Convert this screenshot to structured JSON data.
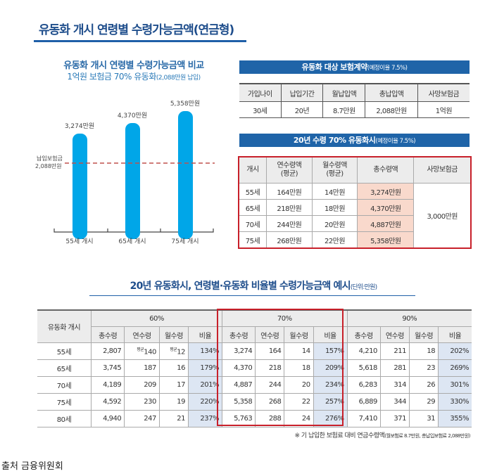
{
  "title": "유동화 개시 연령별 수령가능금액(연금형)",
  "chart": {
    "title": "유동화 개시 연령별 수령가능금액 비교",
    "subtitle_main": "1억원 보험금 70% 유동화",
    "subtitle_small": "(2,088만원 납입)",
    "ref_label_1": "납입보험금",
    "ref_label_2": "2,088만원",
    "bar_color": "#00a6e8",
    "ref_color": "#c0504d"
  },
  "chart_data": {
    "type": "bar",
    "categories": [
      "55세 개시",
      "65세 개시",
      "75세 개시"
    ],
    "values": [
      3274,
      4370,
      5358
    ],
    "data_labels": [
      "3,274만원",
      "4,370만원",
      "5,358만원"
    ],
    "reference_line": {
      "value": 2088,
      "label": "납입보험금 2,088만원"
    }
  },
  "table1": {
    "title": "유동화 대상 보험계약",
    "title_note": "(예정이율 7.5%)",
    "headers": [
      "가입나이",
      "납입기간",
      "월납입액",
      "총납입액",
      "사망보험금"
    ],
    "row": [
      "30세",
      "20년",
      "8.7만원",
      "2,088만원",
      "1억원"
    ]
  },
  "table2": {
    "title": "20년 수령 70% 유동화시",
    "title_note": "(예정이율 7.5%)",
    "headers": [
      "개시",
      "연수령액\n(평균)",
      "월수령액\n(평균)",
      "총수령액",
      "사망보험금"
    ],
    "rows": [
      [
        "55세",
        "164만원",
        "14만원",
        "3,274만원"
      ],
      [
        "65세",
        "218만원",
        "18만원",
        "4,370만원"
      ],
      [
        "70세",
        "244만원",
        "20만원",
        "4,887만원"
      ],
      [
        "75세",
        "268만원",
        "22만원",
        "5,358만원"
      ]
    ],
    "death_benefit": "3,000만원"
  },
  "table3": {
    "title": "20년 유동화시, 연령별·유동화 비율별 수령가능금액 예시",
    "title_note": "(단위:만원)",
    "row_header": "유동화 개시",
    "groups": [
      "60%",
      "70%",
      "90%"
    ],
    "subheaders": [
      "총수령",
      "연수령",
      "월수령",
      "비율"
    ],
    "avg_mark": "평균",
    "rows": [
      [
        "55세",
        "2,807",
        "140",
        "12",
        "134%",
        "3,274",
        "164",
        "14",
        "157%",
        "4,210",
        "211",
        "18",
        "202%"
      ],
      [
        "65세",
        "3,745",
        "187",
        "16",
        "179%",
        "4,370",
        "218",
        "18",
        "209%",
        "5,618",
        "281",
        "23",
        "269%"
      ],
      [
        "70세",
        "4,189",
        "209",
        "17",
        "201%",
        "4,887",
        "244",
        "20",
        "234%",
        "6,283",
        "314",
        "26",
        "301%"
      ],
      [
        "75세",
        "4,592",
        "230",
        "19",
        "220%",
        "5,358",
        "268",
        "22",
        "257%",
        "6,889",
        "344",
        "29",
        "330%"
      ],
      [
        "80세",
        "4,940",
        "247",
        "21",
        "237%",
        "5,763",
        "288",
        "24",
        "276%",
        "7,410",
        "371",
        "31",
        "355%"
      ]
    ]
  },
  "footnote": "※ 기 납입한 보험료 대비 연금수령액",
  "footnote_small": "(월보험료 8.7만원, 총납입보험료 2,088만원)",
  "source": "출처 금융위원회"
}
